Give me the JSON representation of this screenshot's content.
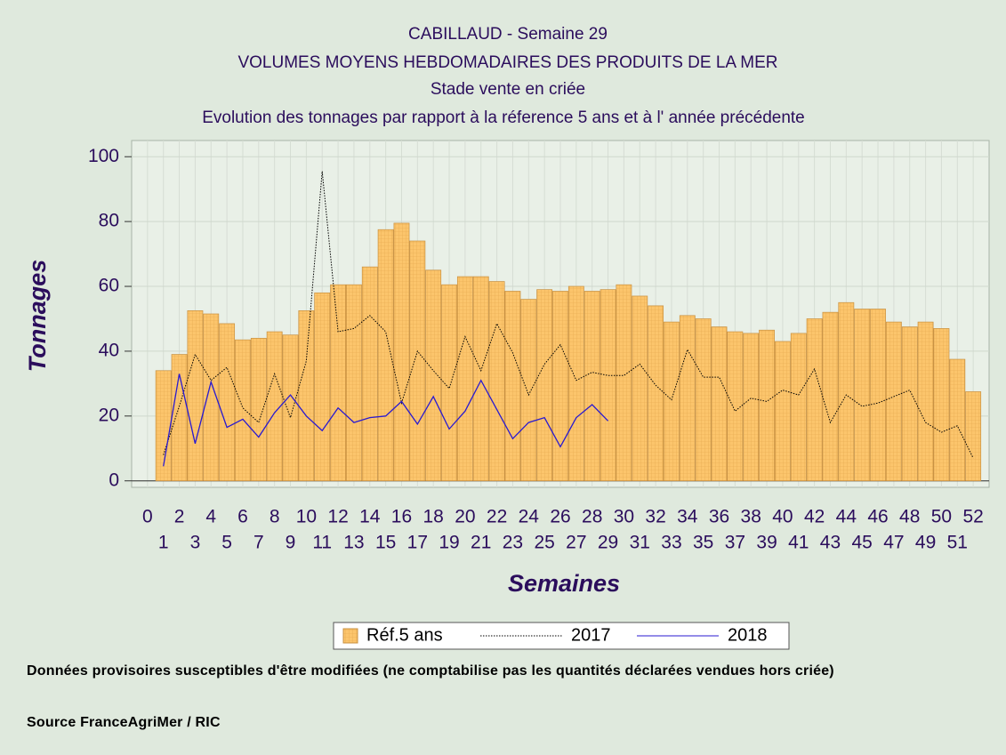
{
  "chart_data": {
    "type": "combo",
    "title": "CABILLAUD - Semaine 29",
    "subtitle": [
      "VOLUMES MOYENS HEBDOMADAIRES DES PRODUITS DE LA MER",
      "Stade vente en criée",
      "Evolution des tonnages par rapport à la réference 5 ans et à l' année précédente"
    ],
    "x_label": "Semaines",
    "y_label": "Tonnages",
    "x": [
      1,
      2,
      3,
      4,
      5,
      6,
      7,
      8,
      9,
      10,
      11,
      12,
      13,
      14,
      15,
      16,
      17,
      18,
      19,
      20,
      21,
      22,
      23,
      24,
      25,
      26,
      27,
      28,
      29,
      30,
      31,
      32,
      33,
      34,
      35,
      36,
      37,
      38,
      39,
      40,
      41,
      42,
      43,
      44,
      45,
      46,
      47,
      48,
      49,
      50,
      51,
      52
    ],
    "series": [
      {
        "name": "Réf.5 ans",
        "type": "bar",
        "color": "#fcc56c",
        "values": [
          34,
          39,
          52.5,
          51.5,
          48.5,
          43.5,
          44,
          46,
          45,
          52.5,
          58,
          60.5,
          60.5,
          66,
          77.5,
          79.5,
          74,
          65,
          60.5,
          63,
          63,
          61.5,
          58.5,
          56,
          59,
          58.5,
          60,
          58.5,
          59,
          60.5,
          57,
          54,
          49,
          51,
          50,
          47.5,
          46,
          45.5,
          46.5,
          43,
          45.5,
          50,
          52,
          55,
          53,
          53,
          49,
          47.5,
          49,
          47,
          37.5,
          27.5
        ]
      },
      {
        "name": "2017",
        "type": "line",
        "dash": "dotted",
        "color": "#000000",
        "values": [
          8,
          23,
          39,
          31,
          35,
          22.5,
          18,
          33,
          19.5,
          37,
          95.5,
          46,
          47,
          51,
          46,
          24,
          40,
          34,
          28.5,
          44.5,
          34,
          48.5,
          39.5,
          26.5,
          36,
          42,
          31,
          33.5,
          32.5,
          32.5,
          36,
          29.5,
          25,
          40.5,
          32,
          32,
          21.5,
          25.5,
          24.5,
          28,
          26.5,
          34.5,
          18,
          26.5,
          23,
          24,
          26,
          28,
          18,
          15,
          17,
          7
        ]
      },
      {
        "name": "2018",
        "type": "line",
        "dash": "solid",
        "color": "#2a1ad0",
        "values": [
          4.5,
          33,
          11.5,
          30.5,
          16.5,
          19,
          13.5,
          21,
          26.5,
          20,
          15.5,
          22.5,
          18,
          19.5,
          20,
          24.5,
          17.5,
          26,
          16,
          21.5,
          31,
          22,
          13,
          18,
          19.5,
          10.5,
          19.5,
          23.5,
          18.5,
          null,
          null,
          null,
          null,
          null,
          null,
          null,
          null,
          null,
          null,
          null,
          null,
          null,
          null,
          null,
          null,
          null,
          null,
          null,
          null,
          null,
          null,
          null
        ]
      }
    ],
    "xlim": [
      -1,
      53
    ],
    "xticks": [
      0,
      1,
      2,
      3,
      4,
      5,
      6,
      7,
      8,
      9,
      10,
      11,
      12,
      13,
      14,
      15,
      16,
      17,
      18,
      19,
      20,
      21,
      22,
      23,
      24,
      25,
      26,
      27,
      28,
      29,
      30,
      31,
      32,
      33,
      34,
      35,
      36,
      37,
      38,
      39,
      40,
      41,
      42,
      43,
      44,
      45,
      46,
      47,
      48,
      49,
      50,
      51,
      52
    ],
    "ylim": [
      -2,
      105
    ],
    "yticks": [
      0,
      20,
      40,
      60,
      80,
      100
    ],
    "grid": true,
    "notes": [
      "Données provisoires susceptibles d'être modifiées (ne comptabilise pas les quantités déclarées vendues hors criée)",
      "Source FranceAgriMer / RIC"
    ]
  }
}
